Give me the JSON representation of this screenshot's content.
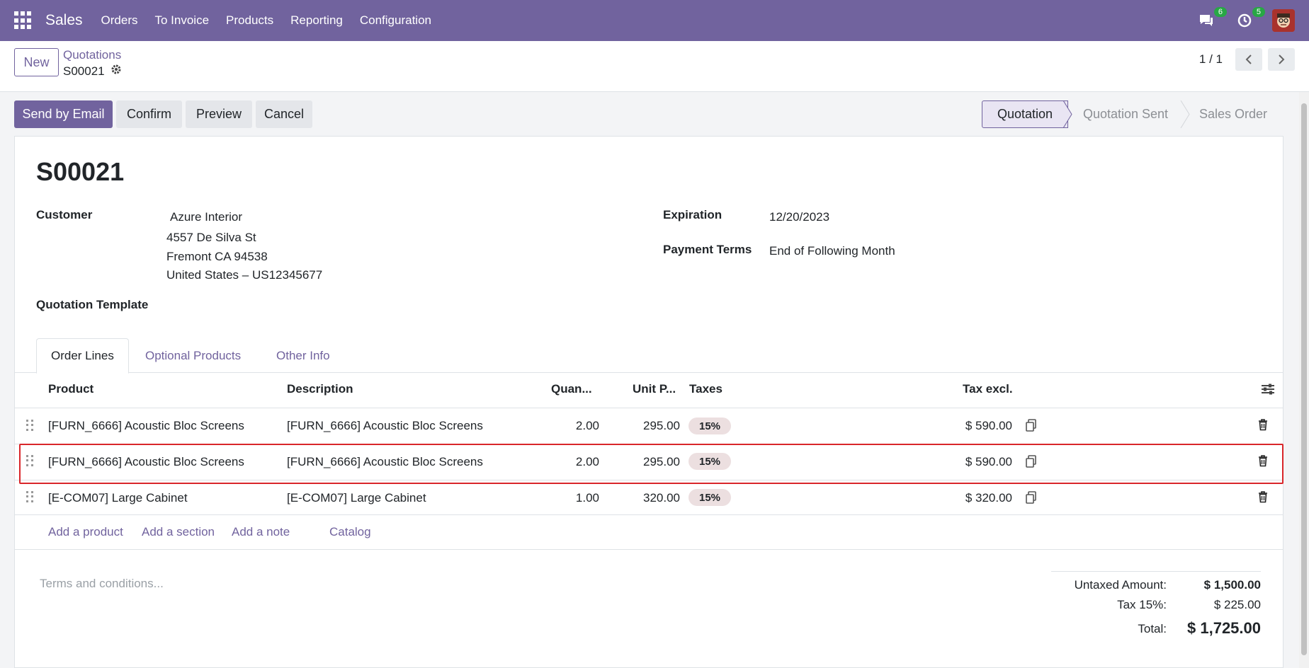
{
  "navbar": {
    "app_name": "Sales",
    "menu": [
      "Orders",
      "To Invoice",
      "Products",
      "Reporting",
      "Configuration"
    ],
    "messages_count": "6",
    "activities_count": "5"
  },
  "control": {
    "new_label": "New",
    "breadcrumb_parent": "Quotations",
    "breadcrumb_current": "S00021",
    "pager_value": "1 / 1"
  },
  "actions": {
    "send_email": "Send by Email",
    "confirm": "Confirm",
    "preview": "Preview",
    "cancel": "Cancel"
  },
  "status": [
    "Quotation",
    "Quotation Sent",
    "Sales Order"
  ],
  "form": {
    "title": "S00021",
    "customer_label": "Customer",
    "customer_name": "Azure Interior",
    "address_line1": "4557 De Silva St",
    "address_line2": "Fremont CA 94538",
    "address_line3": "United States – US12345677",
    "template_label": "Quotation Template",
    "expiration_label": "Expiration",
    "expiration_value": "12/20/2023",
    "payment_terms_label": "Payment Terms",
    "payment_terms_value": "End of Following Month"
  },
  "tabs": [
    "Order Lines",
    "Optional Products",
    "Other Info"
  ],
  "table": {
    "headers": {
      "product": "Product",
      "description": "Description",
      "quantity": "Quan...",
      "unit_price": "Unit P...",
      "taxes": "Taxes",
      "tax_excl": "Tax excl."
    },
    "rows": [
      {
        "product": "[FURN_6666] Acoustic Bloc Screens",
        "description": "[FURN_6666] Acoustic Bloc Screens",
        "quantity": "2.00",
        "unit_price": "295.00",
        "tax": "15%",
        "subtotal": "$ 590.00"
      },
      {
        "product": "[FURN_6666] Acoustic Bloc Screens",
        "description": "[FURN_6666] Acoustic Bloc Screens",
        "quantity": "2.00",
        "unit_price": "295.00",
        "tax": "15%",
        "subtotal": "$ 590.00"
      },
      {
        "product": "[E-COM07] Large Cabinet",
        "description": "[E-COM07] Large Cabinet",
        "quantity": "1.00",
        "unit_price": "320.00",
        "tax": "15%",
        "subtotal": "$ 320.00"
      }
    ],
    "add_links": [
      "Add a product",
      "Add a section",
      "Add a note",
      "Catalog"
    ]
  },
  "footer": {
    "terms_placeholder": "Terms and conditions...",
    "untaxed_label": "Untaxed Amount:",
    "untaxed_value": "$ 1,500.00",
    "tax_label": "Tax 15%:",
    "tax_value": "$ 225.00",
    "total_label": "Total:",
    "total_value": "$ 1,725.00"
  },
  "colors": {
    "brand": "#71639e",
    "highlight_border": "#d9262a",
    "badge": "#28a745"
  }
}
